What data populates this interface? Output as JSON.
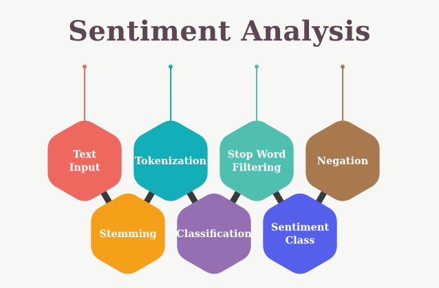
{
  "title": "Sentiment Analysis",
  "colors": {
    "title": "#5c4654",
    "background": "#f7f7f5",
    "connector": "#3a3a3a"
  },
  "nodes": [
    {
      "id": "text-input",
      "lines": [
        "Text",
        "Input"
      ],
      "color": "#ef6860",
      "row": "top",
      "pin": true
    },
    {
      "id": "tokenization",
      "lines": [
        "Tokenization"
      ],
      "color": "#13afb8",
      "row": "top",
      "pin": true
    },
    {
      "id": "stop-word-filtering",
      "lines": [
        "Stop Word",
        "Filtering"
      ],
      "color": "#4fc0b0",
      "row": "top",
      "pin": true
    },
    {
      "id": "negation",
      "lines": [
        "Negation"
      ],
      "color": "#a8784f",
      "row": "top",
      "pin": true
    },
    {
      "id": "stemming",
      "lines": [
        "Stemming"
      ],
      "color": "#f5a018",
      "row": "bottom",
      "pin": false
    },
    {
      "id": "classification",
      "lines": [
        "Classification"
      ],
      "color": "#9470b3",
      "row": "bottom",
      "pin": false
    },
    {
      "id": "sentiment-class",
      "lines": [
        "Sentiment",
        "Class"
      ],
      "color": "#5460ec",
      "row": "bottom",
      "pin": false
    }
  ]
}
